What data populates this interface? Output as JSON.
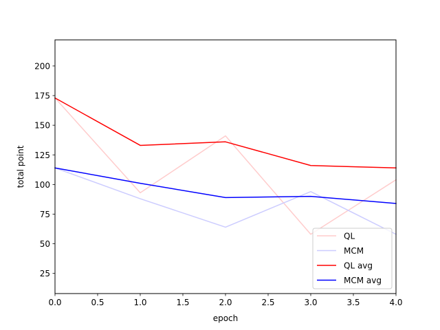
{
  "chart_data": {
    "type": "line",
    "title": "",
    "xlabel": "epoch",
    "ylabel": "total point",
    "xlim": [
      0,
      4
    ],
    "ylim": [
      8,
      222
    ],
    "x_ticks": [
      0.0,
      0.5,
      1.0,
      1.5,
      2.0,
      2.5,
      3.0,
      3.5,
      4.0
    ],
    "x_tick_labels": [
      "0.0",
      "0.5",
      "1.0",
      "1.5",
      "2.0",
      "2.5",
      "3.0",
      "3.5",
      "4.0"
    ],
    "y_ticks": [
      25,
      50,
      75,
      100,
      125,
      150,
      175,
      200
    ],
    "y_tick_labels": [
      "25",
      "50",
      "75",
      "100",
      "125",
      "150",
      "175",
      "200"
    ],
    "grid": false,
    "legend_position": "lower-right",
    "x": [
      0,
      1,
      2,
      3,
      4
    ],
    "series": [
      {
        "name": "QL",
        "values": [
          173,
          93,
          141,
          58,
          104
        ],
        "color": "#ffcccc"
      },
      {
        "name": "MCM",
        "values": [
          114,
          88,
          64,
          94,
          58
        ],
        "color": "#ccccff"
      },
      {
        "name": "QL avg",
        "values": [
          173,
          133,
          136,
          116,
          114
        ],
        "color": "#ff0000"
      },
      {
        "name": "MCM avg",
        "values": [
          114,
          101,
          89,
          90,
          84
        ],
        "color": "#0000ff"
      }
    ]
  }
}
